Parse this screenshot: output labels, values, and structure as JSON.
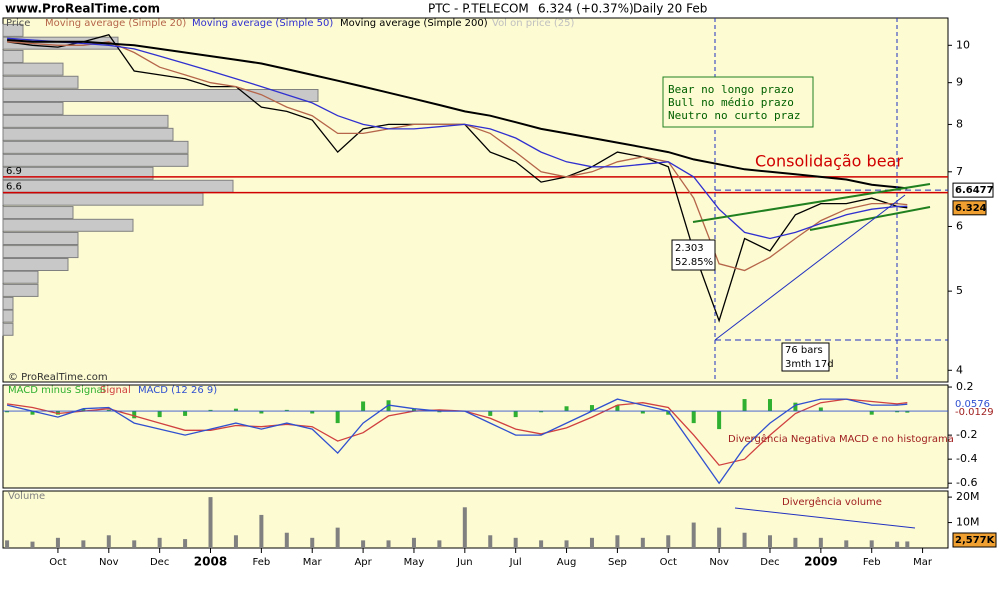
{
  "header": {
    "site": "www.ProRealTime.com",
    "symbol": "PTC - P.TELECOM",
    "quote": "6.324 (+0.37%)",
    "period": "Daily",
    "date": "20 Feb",
    "copyright": "© ProRealTime.com"
  },
  "chart_data": [
    {
      "type": "line",
      "log_scale": true,
      "price_label": "Price",
      "x": [
        -1,
        -0.5,
        0,
        0.5,
        1,
        1.5,
        2,
        2.5,
        3,
        3.5,
        4,
        4.5,
        5,
        5.5,
        6,
        6.5,
        7,
        7.5,
        8,
        8.5,
        9,
        9.5,
        10,
        10.5,
        11,
        11.5,
        12,
        12.5,
        13,
        13.5,
        14,
        14.5,
        15,
        15.5,
        16,
        16.5,
        16.7
      ],
      "xlim": [
        -1.08,
        17.5
      ],
      "ylim": [
        3.87,
        10.8
      ],
      "yticks": [
        4,
        5,
        6,
        7,
        8,
        9,
        10
      ],
      "series": [
        {
          "name": "Price",
          "color": "#000000",
          "values": [
            10.1,
            10.0,
            9.95,
            10.1,
            10.3,
            9.3,
            9.2,
            9.1,
            8.9,
            8.9,
            8.4,
            8.3,
            8.1,
            7.4,
            7.9,
            8.0,
            8.0,
            8.0,
            8.0,
            7.4,
            7.2,
            6.8,
            6.9,
            7.1,
            7.4,
            7.3,
            7.1,
            5.6,
            4.6,
            5.8,
            5.6,
            6.2,
            6.4,
            6.4,
            6.5,
            6.35,
            6.324
          ]
        },
        {
          "name": "Moving average (Simple 20)",
          "color": "#b5654a",
          "values": [
            10.1,
            10.05,
            10.0,
            10.0,
            10.1,
            9.8,
            9.4,
            9.2,
            9.0,
            8.9,
            8.7,
            8.4,
            8.2,
            7.8,
            7.8,
            7.9,
            8.0,
            8.0,
            8.0,
            7.8,
            7.4,
            7.0,
            6.9,
            7.0,
            7.2,
            7.3,
            7.2,
            6.5,
            5.4,
            5.3,
            5.5,
            5.8,
            6.1,
            6.3,
            6.4,
            6.4,
            6.38
          ]
        },
        {
          "name": "Moving average (Simple 50)",
          "color": "#3030d0",
          "values": [
            10.2,
            10.15,
            10.1,
            10.05,
            10.0,
            9.9,
            9.7,
            9.5,
            9.3,
            9.1,
            8.9,
            8.7,
            8.5,
            8.2,
            8.0,
            7.9,
            7.9,
            7.95,
            8.0,
            7.9,
            7.7,
            7.4,
            7.2,
            7.1,
            7.1,
            7.15,
            7.2,
            6.9,
            6.3,
            5.9,
            5.8,
            5.9,
            6.05,
            6.2,
            6.3,
            6.35,
            6.35
          ]
        },
        {
          "name": "Moving average (Simple 200)",
          "color": "#000000",
          "values": [
            10.15,
            10.1,
            10.1,
            10.1,
            10.05,
            10.0,
            9.9,
            9.8,
            9.7,
            9.6,
            9.5,
            9.35,
            9.2,
            9.05,
            8.9,
            8.75,
            8.6,
            8.45,
            8.3,
            8.2,
            8.05,
            7.9,
            7.8,
            7.7,
            7.6,
            7.5,
            7.4,
            7.25,
            7.15,
            7.05,
            7.0,
            6.95,
            6.9,
            6.85,
            6.75,
            6.7,
            6.68
          ]
        }
      ],
      "volume_profile": {
        "name": "Vol on price (25)",
        "color": "#c8c8c8",
        "levels": [
          10.43,
          10.06,
          9.69,
          9.35,
          9.01,
          8.68,
          8.37,
          8.07,
          7.78,
          7.5,
          7.23,
          6.97,
          6.72,
          6.48,
          6.24,
          6.02,
          5.8,
          5.59,
          5.39,
          5.2,
          5.01,
          4.83,
          4.66,
          4.49
        ],
        "values": [
          20,
          115,
          20,
          60,
          75,
          315,
          60,
          165,
          170,
          185,
          185,
          150,
          230,
          200,
          70,
          130,
          75,
          75,
          65,
          35,
          35,
          10,
          10,
          10
        ]
      },
      "hlines": [
        6.9,
        6.6
      ],
      "hline_color": "#d00000",
      "resistance": 6.6477,
      "annotations": {
        "consolidation": "Consolidação bear",
        "trend_box": [
          "Bear no longo prazo",
          "Bull no médio prazo",
          "Neutro no curto praz"
        ],
        "move": [
          "2.303",
          "52.85%"
        ],
        "duration": [
          "76 bars",
          "3mth 17d"
        ]
      }
    },
    {
      "type": "line",
      "x": [
        -1,
        -0.5,
        0,
        0.5,
        1,
        1.5,
        2,
        2.5,
        3,
        3.5,
        4,
        4.5,
        5,
        5.5,
        6,
        6.5,
        7,
        7.5,
        8,
        8.5,
        9,
        9.5,
        10,
        10.5,
        11,
        11.5,
        12,
        12.5,
        13,
        13.5,
        14,
        14.5,
        15,
        15.5,
        16,
        16.5,
        16.7
      ],
      "xlim": [
        -1.08,
        17.5
      ],
      "ylim": [
        -0.64,
        0.217
      ],
      "yticks": [
        0.2,
        -0.2,
        -0.4,
        -0.6
      ],
      "series": [
        {
          "name": "MACD minus Signal",
          "color": "#30b030",
          "values": [
            -0.01,
            -0.03,
            -0.03,
            0.02,
            0.01,
            -0.06,
            -0.05,
            -0.04,
            0.01,
            0.02,
            -0.02,
            0.01,
            -0.02,
            -0.1,
            0.08,
            0.09,
            0.02,
            -0.01,
            0.0,
            -0.04,
            -0.05,
            -0.01,
            0.04,
            0.05,
            0.05,
            -0.02,
            -0.03,
            -0.1,
            -0.15,
            0.1,
            0.1,
            0.07,
            0.03,
            0.0,
            -0.03,
            -0.01,
            -0.0129
          ]
        },
        {
          "name": "Signal",
          "color": "#d04040",
          "values": [
            0.06,
            0.03,
            -0.02,
            0.0,
            0.02,
            -0.04,
            -0.1,
            -0.16,
            -0.16,
            -0.12,
            -0.13,
            -0.11,
            -0.13,
            -0.25,
            -0.18,
            -0.04,
            0.0,
            0.01,
            0.0,
            -0.06,
            -0.15,
            -0.19,
            -0.14,
            -0.05,
            0.05,
            0.07,
            0.03,
            -0.2,
            -0.45,
            -0.4,
            -0.2,
            -0.02,
            0.07,
            0.1,
            0.08,
            0.06,
            0.0705
          ]
        },
        {
          "name": "MACD (12 26 9)",
          "color": "#3050d0",
          "values": [
            0.05,
            0.0,
            -0.05,
            0.02,
            0.03,
            -0.1,
            -0.15,
            -0.2,
            -0.15,
            -0.1,
            -0.15,
            -0.1,
            -0.15,
            -0.35,
            -0.1,
            0.05,
            0.02,
            0.0,
            0.0,
            -0.1,
            -0.2,
            -0.2,
            -0.1,
            0.0,
            0.1,
            0.05,
            0.0,
            -0.3,
            -0.6,
            -0.3,
            -0.1,
            0.05,
            0.1,
            0.1,
            0.05,
            0.05,
            0.0576
          ]
        }
      ],
      "annotation": "Divergência Negativa MACD e no histograma"
    },
    {
      "type": "bar",
      "x": [
        -1,
        -0.5,
        0,
        0.5,
        1,
        1.5,
        2,
        2.5,
        3,
        3.5,
        4,
        4.5,
        5,
        5.5,
        6,
        6.5,
        7,
        7.5,
        8,
        8.5,
        9,
        9.5,
        10,
        10.5,
        11,
        11.5,
        12,
        12.5,
        13,
        13.5,
        14,
        14.5,
        15,
        15.5,
        16,
        16.5,
        16.7
      ],
      "xlim": [
        -1.08,
        17.5
      ],
      "ylim": [
        0,
        22400000
      ],
      "yticks": [
        {
          "value": 10000000,
          "label": "10M"
        },
        {
          "value": 20000000,
          "label": "20M"
        }
      ],
      "xticks": [
        {
          "value": 0,
          "label": "Oct"
        },
        {
          "value": 1,
          "label": "Nov"
        },
        {
          "value": 2,
          "label": "Dec"
        },
        {
          "value": 3,
          "label": "2008"
        },
        {
          "value": 4,
          "label": "Feb"
        },
        {
          "value": 5,
          "label": "Mar"
        },
        {
          "value": 6,
          "label": "Apr"
        },
        {
          "value": 7,
          "label": "May"
        },
        {
          "value": 8,
          "label": "Jun"
        },
        {
          "value": 9,
          "label": "Jul"
        },
        {
          "value": 10,
          "label": "Aug"
        },
        {
          "value": 11,
          "label": "Sep"
        },
        {
          "value": 12,
          "label": "Oct"
        },
        {
          "value": 13,
          "label": "Nov"
        },
        {
          "value": 14,
          "label": "Dec"
        },
        {
          "value": 15,
          "label": "2009"
        },
        {
          "value": 16,
          "label": "Feb"
        },
        {
          "value": 17,
          "label": "Mar"
        }
      ],
      "series": [
        {
          "name": "Volume",
          "color": "#808080",
          "values": [
            3000000,
            2500000,
            4000000,
            3000000,
            5000000,
            3000000,
            4000000,
            3500000,
            20000000,
            5000000,
            13000000,
            6000000,
            4000000,
            8000000,
            3000000,
            3000000,
            4000000,
            3000000,
            16000000,
            5000000,
            4000000,
            3000000,
            3000000,
            4000000,
            5000000,
            4000000,
            5000000,
            10000000,
            8000000,
            6000000,
            5000000,
            4000000,
            4000000,
            3000000,
            3000000,
            2500000,
            2577000
          ],
          "value_labels": [
            null,
            null,
            null,
            null,
            null,
            null,
            null,
            null,
            null,
            null,
            null,
            null,
            null,
            null,
            null,
            null,
            null,
            null,
            null,
            null,
            null,
            null,
            null,
            null,
            null,
            null,
            null,
            null,
            null,
            null,
            null,
            null,
            null,
            null,
            null,
            null,
            "2,577K"
          ]
        }
      ],
      "annotation": "Divergência volume"
    }
  ]
}
